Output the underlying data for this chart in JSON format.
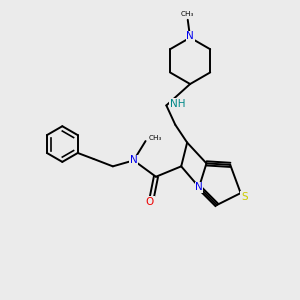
{
  "bg_color": "#ebebeb",
  "atom_colors": {
    "N": "#0000ee",
    "O": "#ee0000",
    "S": "#cccc00",
    "C": "#000000",
    "NH": "#008888"
  },
  "bond_color": "#000000",
  "bond_width": 1.4,
  "font_size": 7.5
}
